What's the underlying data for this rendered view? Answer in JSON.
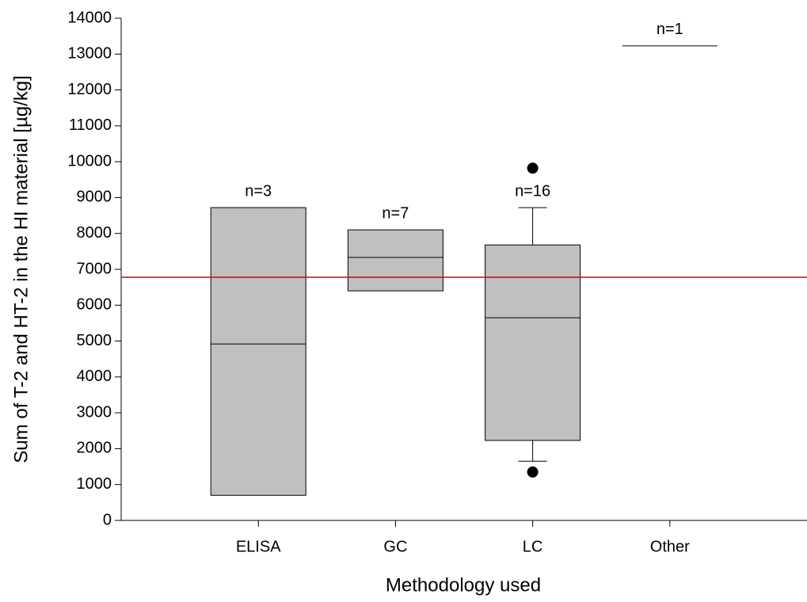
{
  "chart_data": {
    "type": "box",
    "x_label": "Methodology used",
    "y_label": "Sum of T-2 and HT-2 in the HI material [µg/kg]",
    "categories": [
      "ELISA",
      "GC",
      "LC",
      "Other"
    ],
    "n_labels": [
      "n=3",
      "n=7",
      "n=16",
      "n=1"
    ],
    "whisker_low": [
      null,
      null,
      1650,
      null
    ],
    "q1": [
      700,
      6400,
      2230,
      null
    ],
    "median": [
      4920,
      7330,
      5650,
      13230
    ],
    "q3": [
      8720,
      8100,
      7680,
      null
    ],
    "whisker_high": [
      null,
      null,
      8720,
      null
    ],
    "outliers": [
      [],
      [],
      [
        1350,
        9820
      ],
      []
    ],
    "box_color": "#c0c0c0",
    "reference_line": {
      "value": 6780,
      "color": "#e00000"
    },
    "ylim": [
      0,
      14000
    ],
    "yticks": [
      0,
      1000,
      2000,
      3000,
      4000,
      5000,
      6000,
      7000,
      8000,
      9000,
      10000,
      11000,
      12000,
      13000,
      14000
    ]
  }
}
